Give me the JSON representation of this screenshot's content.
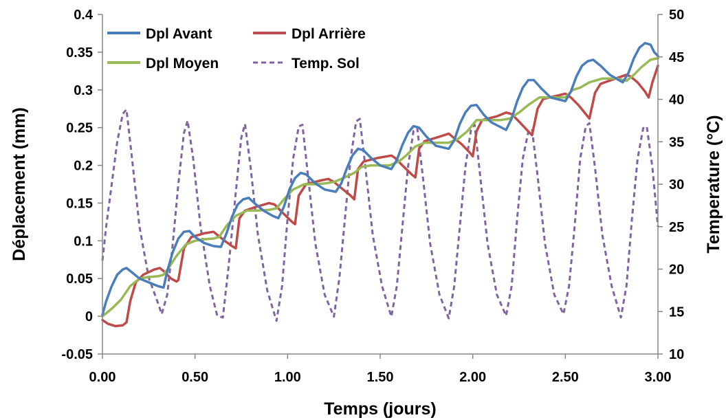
{
  "chart_data": {
    "type": "line",
    "xlabel": "Temps (jours)",
    "ylabel": "Déplacement (mm)",
    "y2label": "Temperature (°C)",
    "xlim": [
      0,
      3
    ],
    "ylim": [
      -0.05,
      0.4
    ],
    "y2lim": [
      10,
      50
    ],
    "x_ticks": [
      "0.00",
      "0.50",
      "1.00",
      "1.50",
      "2.00",
      "2.50",
      "3.00"
    ],
    "y_ticks": [
      "-0.05",
      "0",
      "0.05",
      "0.1",
      "0.15",
      "0.2",
      "0.25",
      "0.3",
      "0.35",
      "0.4"
    ],
    "y2_ticks": [
      "10",
      "15",
      "20",
      "25",
      "30",
      "35",
      "40",
      "45",
      "50"
    ],
    "grid": false,
    "legend_position": "top-left",
    "series": [
      {
        "name": "Dpl Avant",
        "axis": "left",
        "color": "#4a7ebb",
        "style": "solid",
        "x": [
          0,
          0.02,
          0.05,
          0.08,
          0.11,
          0.13,
          0.16,
          0.2,
          0.25,
          0.3,
          0.33,
          0.35,
          0.38,
          0.41,
          0.44,
          0.47,
          0.5,
          0.55,
          0.6,
          0.64,
          0.67,
          0.7,
          0.73,
          0.76,
          0.79,
          0.82,
          0.87,
          0.92,
          0.95,
          0.98,
          1.01,
          1.04,
          1.07,
          1.1,
          1.15,
          1.2,
          1.26,
          1.29,
          1.32,
          1.35,
          1.38,
          1.41,
          1.45,
          1.5,
          1.56,
          1.59,
          1.62,
          1.65,
          1.68,
          1.71,
          1.75,
          1.8,
          1.87,
          1.9,
          1.93,
          1.96,
          1.99,
          2.02,
          2.06,
          2.1,
          2.18,
          2.21,
          2.24,
          2.27,
          2.3,
          2.33,
          2.37,
          2.42,
          2.5,
          2.53,
          2.56,
          2.59,
          2.62,
          2.65,
          2.69,
          2.74,
          2.81,
          2.84,
          2.87,
          2.9,
          2.93,
          2.96,
          2.98,
          3.0
        ],
        "y": [
          0.002,
          0.02,
          0.04,
          0.055,
          0.062,
          0.064,
          0.058,
          0.05,
          0.045,
          0.04,
          0.038,
          0.06,
          0.085,
          0.103,
          0.112,
          0.113,
          0.105,
          0.097,
          0.093,
          0.092,
          0.11,
          0.132,
          0.148,
          0.155,
          0.157,
          0.15,
          0.14,
          0.133,
          0.13,
          0.145,
          0.168,
          0.183,
          0.19,
          0.188,
          0.176,
          0.168,
          0.165,
          0.176,
          0.196,
          0.213,
          0.222,
          0.22,
          0.21,
          0.2,
          0.195,
          0.207,
          0.227,
          0.243,
          0.252,
          0.25,
          0.238,
          0.226,
          0.222,
          0.233,
          0.255,
          0.27,
          0.279,
          0.28,
          0.267,
          0.257,
          0.247,
          0.262,
          0.285,
          0.303,
          0.313,
          0.313,
          0.302,
          0.29,
          0.285,
          0.298,
          0.318,
          0.332,
          0.338,
          0.34,
          0.332,
          0.32,
          0.31,
          0.322,
          0.342,
          0.356,
          0.362,
          0.36,
          0.35,
          0.345
        ]
      },
      {
        "name": "Dpl Arrière",
        "axis": "left",
        "color": "#be4b48",
        "style": "solid",
        "x": [
          0,
          0.03,
          0.07,
          0.11,
          0.13,
          0.15,
          0.18,
          0.22,
          0.28,
          0.31,
          0.33,
          0.37,
          0.4,
          0.41,
          0.44,
          0.48,
          0.55,
          0.6,
          0.62,
          0.66,
          0.7,
          0.72,
          0.74,
          0.77,
          0.83,
          0.9,
          0.93,
          0.97,
          1.02,
          1.04,
          1.06,
          1.1,
          1.18,
          1.22,
          1.25,
          1.3,
          1.34,
          1.36,
          1.38,
          1.41,
          1.49,
          1.56,
          1.58,
          1.62,
          1.67,
          1.69,
          1.71,
          1.74,
          1.82,
          1.87,
          1.89,
          1.94,
          1.98,
          2.0,
          2.02,
          2.05,
          2.13,
          2.18,
          2.21,
          2.25,
          2.3,
          2.32,
          2.35,
          2.38,
          2.45,
          2.5,
          2.53,
          2.57,
          2.61,
          2.63,
          2.66,
          2.69,
          2.77,
          2.83,
          2.85,
          2.89,
          2.93,
          2.95,
          2.97,
          3.0
        ],
        "y": [
          -0.005,
          -0.01,
          -0.013,
          -0.012,
          -0.008,
          0.02,
          0.045,
          0.055,
          0.062,
          0.064,
          0.06,
          0.05,
          0.046,
          0.048,
          0.09,
          0.105,
          0.11,
          0.112,
          0.108,
          0.1,
          0.093,
          0.09,
          0.13,
          0.14,
          0.145,
          0.15,
          0.148,
          0.138,
          0.126,
          0.122,
          0.16,
          0.175,
          0.18,
          0.182,
          0.178,
          0.168,
          0.16,
          0.155,
          0.195,
          0.205,
          0.21,
          0.213,
          0.21,
          0.2,
          0.188,
          0.184,
          0.222,
          0.232,
          0.238,
          0.242,
          0.238,
          0.228,
          0.218,
          0.212,
          0.245,
          0.26,
          0.265,
          0.27,
          0.268,
          0.258,
          0.245,
          0.24,
          0.275,
          0.288,
          0.292,
          0.295,
          0.29,
          0.28,
          0.268,
          0.262,
          0.296,
          0.308,
          0.315,
          0.32,
          0.318,
          0.31,
          0.298,
          0.29,
          0.31,
          0.332
        ]
      },
      {
        "name": "Dpl Moyen",
        "axis": "left",
        "color": "#98b954",
        "style": "solid",
        "x": [
          0,
          0.05,
          0.1,
          0.15,
          0.2,
          0.25,
          0.3,
          0.33,
          0.36,
          0.4,
          0.45,
          0.5,
          0.55,
          0.6,
          0.63,
          0.67,
          0.72,
          0.78,
          0.83,
          0.9,
          0.94,
          0.98,
          1.03,
          1.09,
          1.15,
          1.2,
          1.25,
          1.3,
          1.36,
          1.4,
          1.45,
          1.5,
          1.55,
          1.6,
          1.64,
          1.69,
          1.74,
          1.8,
          1.87,
          1.92,
          1.97,
          2.02,
          2.08,
          2.15,
          2.2,
          2.25,
          2.3,
          2.36,
          2.42,
          2.5,
          2.54,
          2.58,
          2.63,
          2.7,
          2.78,
          2.83,
          2.87,
          2.91,
          2.96,
          3.0
        ],
        "y": [
          0,
          0.01,
          0.022,
          0.04,
          0.05,
          0.052,
          0.053,
          0.055,
          0.065,
          0.08,
          0.095,
          0.1,
          0.102,
          0.103,
          0.105,
          0.12,
          0.133,
          0.14,
          0.14,
          0.141,
          0.143,
          0.155,
          0.168,
          0.175,
          0.175,
          0.176,
          0.178,
          0.183,
          0.19,
          0.198,
          0.2,
          0.2,
          0.2,
          0.205,
          0.213,
          0.225,
          0.23,
          0.23,
          0.23,
          0.235,
          0.245,
          0.26,
          0.26,
          0.26,
          0.262,
          0.27,
          0.28,
          0.29,
          0.29,
          0.29,
          0.3,
          0.303,
          0.31,
          0.315,
          0.315,
          0.312,
          0.32,
          0.33,
          0.34,
          0.342
        ]
      },
      {
        "name": "Temp. Sol",
        "axis": "right",
        "color": "#8064a2",
        "style": "dashed",
        "x": [
          0,
          0.02,
          0.05,
          0.08,
          0.11,
          0.13,
          0.16,
          0.2,
          0.25,
          0.3,
          0.32,
          0.35,
          0.38,
          0.41,
          0.44,
          0.46,
          0.49,
          0.53,
          0.58,
          0.62,
          0.65,
          0.68,
          0.72,
          0.75,
          0.77,
          0.8,
          0.84,
          0.89,
          0.94,
          0.97,
          1.0,
          1.03,
          1.06,
          1.08,
          1.11,
          1.15,
          1.2,
          1.25,
          1.28,
          1.31,
          1.34,
          1.37,
          1.39,
          1.42,
          1.46,
          1.51,
          1.56,
          1.59,
          1.62,
          1.65,
          1.68,
          1.7,
          1.73,
          1.77,
          1.82,
          1.87,
          1.9,
          1.93,
          1.96,
          1.99,
          2.01,
          2.04,
          2.08,
          2.13,
          2.18,
          2.21,
          2.24,
          2.27,
          2.3,
          2.32,
          2.35,
          2.39,
          2.44,
          2.49,
          2.52,
          2.55,
          2.58,
          2.61,
          2.63,
          2.66,
          2.7,
          2.75,
          2.8,
          2.83,
          2.86,
          2.89,
          2.92,
          2.94,
          2.97,
          3.0
        ],
        "y": [
          21,
          25,
          30,
          35,
          38.3,
          38.8,
          33,
          25,
          19,
          16,
          14.7,
          17,
          23,
          30,
          36,
          37.5,
          33,
          25,
          18,
          14.5,
          14.3,
          20,
          29,
          35.5,
          37.1,
          32,
          24,
          17.5,
          13.9,
          18,
          26,
          33,
          36.8,
          37,
          31,
          23,
          17,
          14.4,
          19,
          26,
          33,
          37.4,
          37.7,
          32,
          24,
          18,
          14.4,
          18,
          25,
          32,
          36.3,
          36.6,
          31,
          23,
          17,
          14.2,
          18,
          25,
          32,
          36.4,
          37,
          31,
          23,
          17,
          14.5,
          18,
          26,
          33,
          36.2,
          36.5,
          31,
          23,
          17,
          14.7,
          18,
          25,
          33,
          36.8,
          37.2,
          32,
          24,
          18,
          14.3,
          18,
          26,
          33,
          36.6,
          36.8,
          32,
          25
        ]
      }
    ]
  }
}
